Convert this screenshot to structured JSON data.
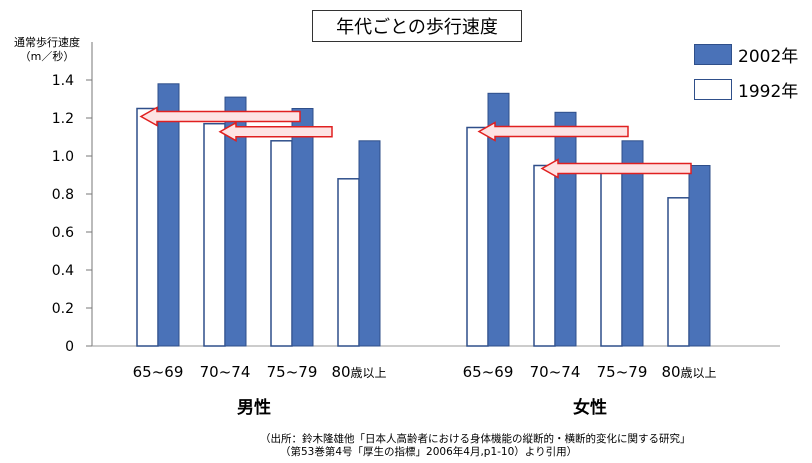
{
  "chart_data": {
    "type": "bar",
    "title": "年代ごとの歩行速度",
    "ylabel_line1": "通常歩行速度",
    "ylabel_line2": "（m／秒）",
    "ylim": [
      0,
      1.4
    ],
    "yticks": [
      "0",
      "0.2",
      "0.4",
      "0.6",
      "0.8",
      "1.0",
      "1.2",
      "1.4"
    ],
    "groups": [
      {
        "name": "男性",
        "categories": [
          "65~69",
          "70~74",
          "75~79",
          "80歳以上"
        ],
        "series": [
          {
            "name": "1992年",
            "values": [
              1.25,
              1.17,
              1.08,
              0.88
            ]
          },
          {
            "name": "2002年",
            "values": [
              1.38,
              1.31,
              1.25,
              1.08
            ]
          }
        ]
      },
      {
        "name": "女性",
        "categories": [
          "65~69",
          "70~74",
          "75~79",
          "80歳以上"
        ],
        "series": [
          {
            "name": "1992年",
            "values": [
              1.15,
              0.95,
              0.93,
              0.78
            ]
          },
          {
            "name": "2002年",
            "values": [
              1.33,
              1.23,
              1.08,
              0.95
            ]
          }
        ]
      }
    ],
    "legend": [
      {
        "name": "2002年",
        "color": "#4a72b8"
      },
      {
        "name": "1992年",
        "color": "#ffffff"
      }
    ],
    "legend_position": "top-right",
    "grid": false
  },
  "colors": {
    "bar_2002": "#4a72b8",
    "bar_2002_stroke": "#2f4f8a",
    "bar_1992": "#ffffff",
    "bar_1992_stroke": "#2f4f8a",
    "arrow_fill": "#fde3e3",
    "arrow_stroke": "#e02020"
  },
  "source": {
    "line1": "（出所：鈴木隆雄他「日本人高齢者における身体機能の縦断的・横断的変化に関する研究」",
    "line2": "（第53巻第4号「厚生の指標」2006年4月,p1-10）より引用）"
  }
}
